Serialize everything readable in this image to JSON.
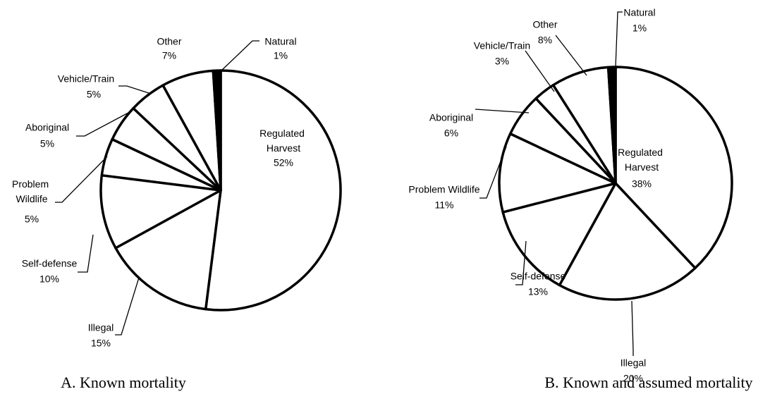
{
  "chart_data": [
    {
      "type": "pie",
      "title": "A. Known mortality",
      "categories": [
        "Regulated Harvest",
        "Illegal",
        "Self-defense",
        "Problem Wildlife",
        "Aboriginal",
        "Vehicle/Train",
        "Other",
        "Natural"
      ],
      "values": [
        52,
        15,
        10,
        5,
        5,
        5,
        7,
        1
      ],
      "value_labels": [
        "52%",
        "15%",
        "10%",
        "5%",
        "5%",
        "5%",
        "7%",
        "1%"
      ],
      "colors": [
        "#ffffff",
        "#ffffff",
        "#ffffff",
        "#ffffff",
        "#ffffff",
        "#ffffff",
        "#ffffff",
        "#000000"
      ]
    },
    {
      "type": "pie",
      "title": "B. Known and assumed mortality",
      "categories": [
        "Regulated Harvest",
        "Illegal",
        "Self-defense",
        "Problem Wildlife",
        "Aboriginal",
        "Vehicle/Train",
        "Other",
        "Natural"
      ],
      "values": [
        38,
        20,
        13,
        11,
        6,
        3,
        8,
        1
      ],
      "value_labels": [
        "38%",
        "20%",
        "13%",
        "11%",
        "6%",
        "3%",
        "8%",
        "1%"
      ],
      "colors": [
        "#ffffff",
        "#ffffff",
        "#ffffff",
        "#ffffff",
        "#ffffff",
        "#ffffff",
        "#ffffff",
        "#000000"
      ]
    }
  ]
}
